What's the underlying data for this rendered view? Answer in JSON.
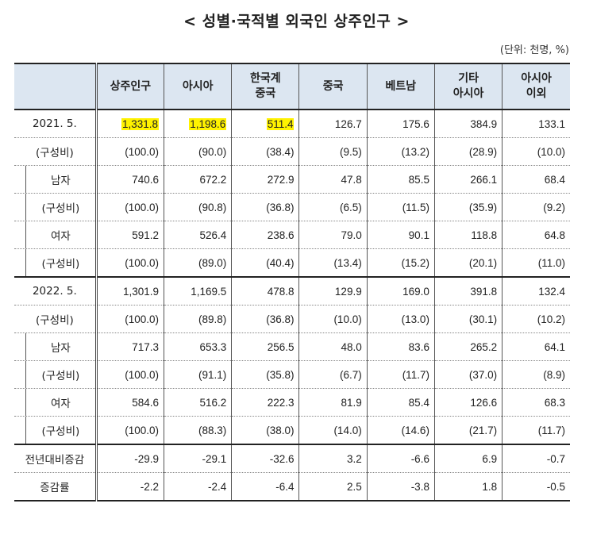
{
  "title": "< 성별·국적별 외국인 상주인구 >",
  "unit": "(단위: 천명, %)",
  "headers": [
    "",
    "상주인구",
    "아시아",
    "한국계\n중국",
    "중국",
    "베트남",
    "기타\n아시아",
    "아시아\n이외"
  ],
  "rows": [
    {
      "label": "2021. 5.",
      "indent": false,
      "cells": [
        "1,331.8",
        "1,198.6",
        "511.4",
        "126.7",
        "175.6",
        "384.9",
        "133.1"
      ]
    },
    {
      "label": "(구성비)",
      "indent": false,
      "cells": [
        "(100.0)",
        "(90.0)",
        "(38.4)",
        "(9.5)",
        "(13.2)",
        "(28.9)",
        "(10.0)"
      ]
    },
    {
      "label": "남자",
      "indent": true,
      "cells": [
        "740.6",
        "672.2",
        "272.9",
        "47.8",
        "85.5",
        "266.1",
        "68.4"
      ]
    },
    {
      "label": "(구성비)",
      "indent": true,
      "cells": [
        "(100.0)",
        "(90.8)",
        "(36.8)",
        "(6.5)",
        "(11.5)",
        "(35.9)",
        "(9.2)"
      ]
    },
    {
      "label": "여자",
      "indent": true,
      "cells": [
        "591.2",
        "526.4",
        "238.6",
        "79.0",
        "90.1",
        "118.8",
        "64.8"
      ]
    },
    {
      "label": "(구성비)",
      "indent": true,
      "cells": [
        "(100.0)",
        "(89.0)",
        "(40.4)",
        "(13.4)",
        "(15.2)",
        "(20.1)",
        "(11.0)"
      ]
    },
    {
      "label": "2022. 5.",
      "indent": false,
      "cells": [
        "1,301.9",
        "1,169.5",
        "478.8",
        "129.9",
        "169.0",
        "391.8",
        "132.4"
      ]
    },
    {
      "label": "(구성비)",
      "indent": false,
      "cells": [
        "(100.0)",
        "(89.8)",
        "(36.8)",
        "(10.0)",
        "(13.0)",
        "(30.1)",
        "(10.2)"
      ]
    },
    {
      "label": "남자",
      "indent": true,
      "cells": [
        "717.3",
        "653.3",
        "256.5",
        "48.0",
        "83.6",
        "265.2",
        "64.1"
      ]
    },
    {
      "label": "(구성비)",
      "indent": true,
      "cells": [
        "(100.0)",
        "(91.1)",
        "(35.8)",
        "(6.7)",
        "(11.7)",
        "(37.0)",
        "(8.9)"
      ]
    },
    {
      "label": "여자",
      "indent": true,
      "cells": [
        "584.6",
        "516.2",
        "222.3",
        "81.9",
        "85.4",
        "126.6",
        "68.3"
      ]
    },
    {
      "label": "(구성비)",
      "indent": true,
      "cells": [
        "(100.0)",
        "(88.3)",
        "(38.0)",
        "(14.0)",
        "(14.6)",
        "(21.7)",
        "(11.7)"
      ]
    },
    {
      "label": "전년대비증감",
      "indent": false,
      "cells": [
        "-29.9",
        "-29.1",
        "-32.6",
        "3.2",
        "-6.6",
        "6.9",
        "-0.7"
      ]
    },
    {
      "label": "증감률",
      "indent": false,
      "cells": [
        "-2.2",
        "-2.4",
        "-6.4",
        "2.5",
        "-3.8",
        "1.8",
        "-0.5"
      ]
    }
  ],
  "highlight": {
    "row": 0,
    "cols": [
      0,
      1,
      2
    ],
    "color": "#fff200"
  },
  "colors": {
    "header_bg": "#dce6f1",
    "highlight": "#fff200"
  }
}
